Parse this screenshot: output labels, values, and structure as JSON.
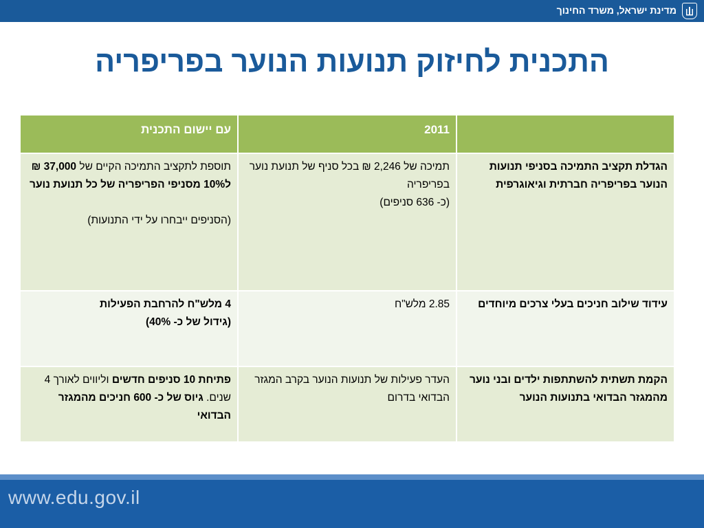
{
  "header": {
    "org_name": "מדינת ישראל, משרד החינוך",
    "emblem_icon": "state-emblem-icon"
  },
  "slide": {
    "title": "התכנית לחיזוק תנועות הנוער בפריפריה"
  },
  "table": {
    "columns": [
      "",
      "2011",
      "עם יישום התכנית"
    ],
    "rows": [
      {
        "topic": "הגדלת תקציב התמיכה בסניפי תנועות הנוער בפריפריה חברתית וגיאוגרפית",
        "y2011_line1": "תמיכה של 2,246 ₪ בכל סניף של תנועת נוער בפריפריה",
        "y2011_line2": "(כ- 636 סניפים)",
        "plan_part1": "תוספת לתקציב התמיכה הקיים של",
        "plan_part2": "37,000 ₪ ל10% מסניפי הפריפריה של כל תנועת נוער",
        "plan_note": "(הסניפים ייבחרו על ידי התנועות)"
      },
      {
        "topic": "עידוד שילוב חניכים בעלי צרכים מיוחדים",
        "y2011": "2.85 מלש\"ח",
        "plan_line1": "4 מלש\"ח להרחבת הפעילות",
        "plan_line2": "(גידול של כ- 40%)"
      },
      {
        "topic": "הקמת תשתית להשתתפות ילדים ובני נוער מהמגזר הבדואי בתנועות הנוער",
        "y2011": "העדר פעילות של תנועות הנוער בקרב המגזר הבדואי בדרום",
        "plan_part1": "פתיחת 10 סניפים חדשים",
        "plan_part2": "וליווים לאורך 4 שנים.",
        "plan_part3": "גיוס של כ- 600 חניכים מהמגזר הבדואי"
      }
    ]
  },
  "footer": {
    "url": "www.edu.gov.il"
  },
  "colors": {
    "header_blue": "#1a5a9a",
    "table_header_green": "#9bbb59",
    "row_shade_dark": "#e5ecd5",
    "row_shade_light": "#f1f5ec",
    "footer_blue": "#1b5ea6"
  }
}
